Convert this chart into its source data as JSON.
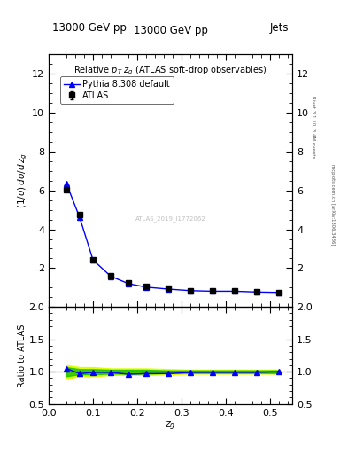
{
  "title_top": "13000 GeV pp",
  "title_top_right": "Jets",
  "plot_title": "Relative p$_T$ z$_g$ (ATLAS soft-drop observables)",
  "ylabel_main": "(1/σ) dσ/d z_g",
  "ylabel_ratio": "Ratio to ATLAS",
  "xlabel": "z_g",
  "right_label_top": "Rivet 3.1.10, 3.4M events",
  "right_label_bot": "mcplots.cern.ch [arXiv:1306.3436]",
  "watermark": "ATLAS_2019_I1772062",
  "atlas_x": [
    0.04,
    0.07,
    0.1,
    0.14,
    0.18,
    0.22,
    0.27,
    0.32,
    0.37,
    0.42,
    0.47,
    0.52
  ],
  "atlas_y": [
    6.05,
    4.75,
    2.45,
    1.6,
    1.25,
    1.05,
    0.95,
    0.85,
    0.82,
    0.82,
    0.78,
    0.75
  ],
  "atlas_yerr": [
    0.12,
    0.1,
    0.07,
    0.05,
    0.04,
    0.03,
    0.03,
    0.02,
    0.02,
    0.02,
    0.02,
    0.02
  ],
  "pythia_x": [
    0.04,
    0.07,
    0.1,
    0.14,
    0.18,
    0.22,
    0.27,
    0.32,
    0.37,
    0.42,
    0.47,
    0.52
  ],
  "pythia_y": [
    6.35,
    4.6,
    2.42,
    1.58,
    1.2,
    1.02,
    0.92,
    0.84,
    0.81,
    0.81,
    0.77,
    0.75
  ],
  "ratio_pythia_y": [
    1.05,
    0.97,
    0.99,
    0.99,
    0.96,
    0.97,
    0.97,
    0.99,
    0.99,
    0.99,
    0.99,
    1.0
  ],
  "band_green_upper": [
    1.07,
    1.04,
    1.04,
    1.03,
    1.03,
    1.03,
    1.02,
    1.02,
    1.02,
    1.02,
    1.02,
    1.02
  ],
  "band_green_lower": [
    0.93,
    0.96,
    0.96,
    0.97,
    0.97,
    0.97,
    0.98,
    0.98,
    0.98,
    0.98,
    0.98,
    0.98
  ],
  "band_yellow_upper": [
    1.1,
    1.07,
    1.07,
    1.05,
    1.05,
    1.05,
    1.04,
    1.03,
    1.03,
    1.03,
    1.03,
    1.03
  ],
  "band_yellow_lower": [
    0.9,
    0.93,
    0.93,
    0.95,
    0.95,
    0.95,
    0.96,
    0.97,
    0.97,
    0.97,
    0.97,
    0.97
  ],
  "ylim_main": [
    0,
    13
  ],
  "ylim_ratio": [
    0.5,
    2.0
  ],
  "xlim": [
    0.0,
    0.55
  ],
  "yticks_main": [
    2,
    4,
    6,
    8,
    10,
    12
  ],
  "yticks_ratio": [
    0.5,
    1.0,
    1.5,
    2.0
  ],
  "color_atlas": "#000000",
  "color_pythia": "#0000ff",
  "color_green_band": "#00bb00",
  "color_yellow_band": "#ddff00",
  "marker_atlas": "s",
  "marker_pythia": "^",
  "bg_color": "#ffffff"
}
